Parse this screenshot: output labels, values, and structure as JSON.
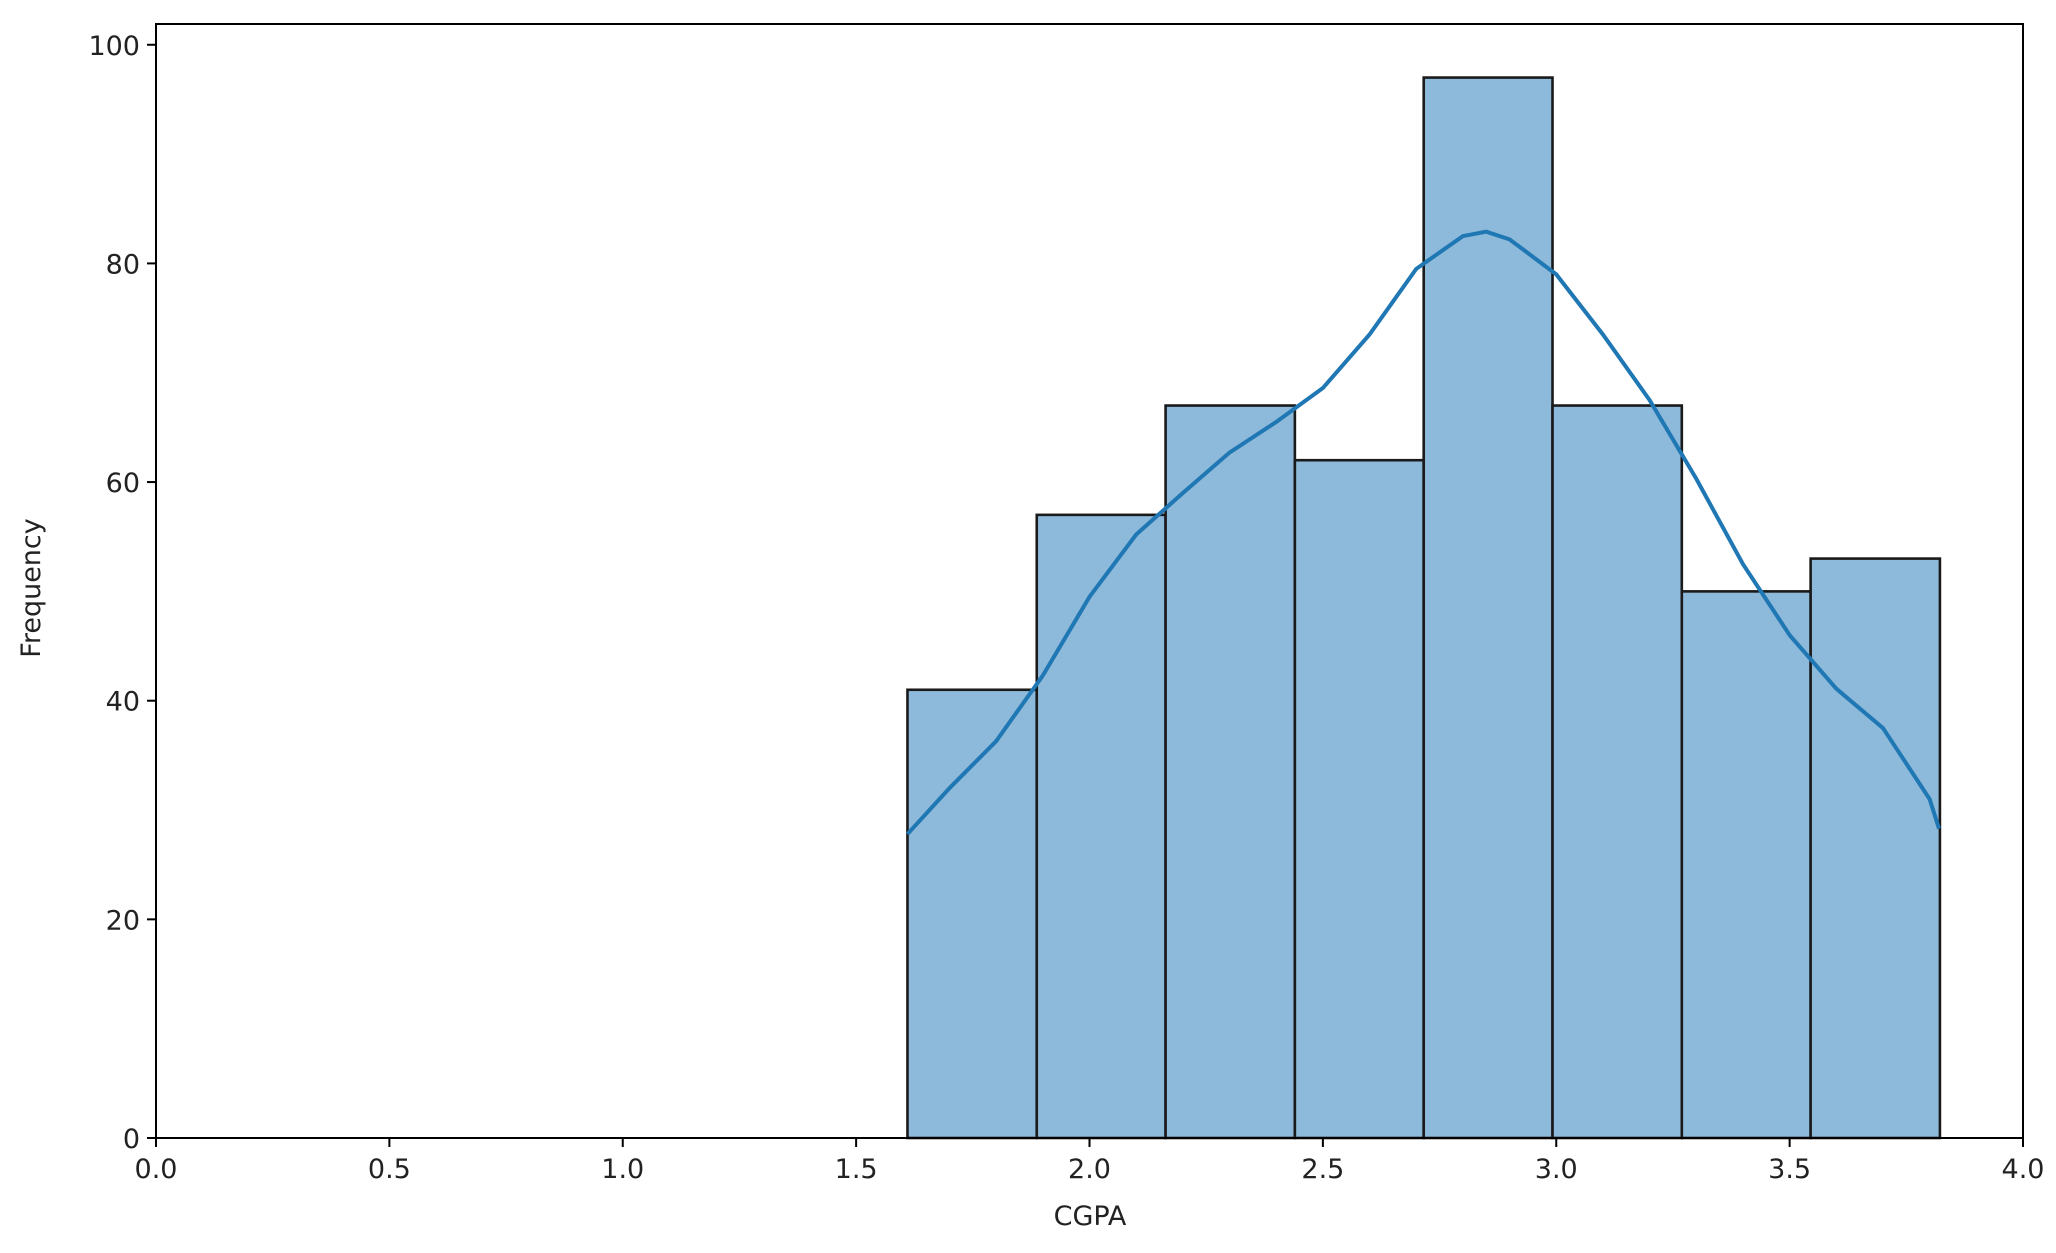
{
  "chart_data": {
    "type": "histogram",
    "xlabel": "CGPA",
    "ylabel": "Frequency",
    "bins": [
      1.61,
      1.887,
      2.163,
      2.44,
      2.716,
      2.992,
      3.269,
      3.545,
      3.822
    ],
    "values": [
      41,
      57,
      67,
      62,
      97,
      67,
      50,
      53
    ],
    "color": "#8db9da",
    "edgecolor": "#1a1a1a",
    "kde": {
      "color": "#1f77b4",
      "x": [
        1.61,
        1.7,
        1.8,
        1.9,
        2.0,
        2.1,
        2.2,
        2.3,
        2.4,
        2.5,
        2.6,
        2.7,
        2.8,
        2.85,
        2.9,
        3.0,
        3.1,
        3.2,
        3.3,
        3.4,
        3.5,
        3.6,
        3.7,
        3.8,
        3.82
      ],
      "values": [
        27.8,
        32,
        36.3,
        42.3,
        49.5,
        55.2,
        59,
        62.7,
        65.5,
        68.6,
        73.5,
        79.5,
        82.5,
        82.9,
        82.2,
        79,
        73.5,
        67.5,
        60.3,
        52.5,
        46,
        41.1,
        37.5,
        31,
        28.3
      ]
    },
    "xlim": [
      0,
      4
    ],
    "xticks": [
      {
        "value": 0,
        "label": "0.0"
      },
      0.5,
      {
        "value": 1,
        "label": "1.0"
      },
      1.5,
      {
        "value": 2,
        "label": "2.0"
      },
      2.5,
      {
        "value": 3,
        "label": "3.0"
      },
      3.5,
      {
        "value": 4,
        "label": "4.0"
      }
    ],
    "ylim": [
      0,
      101.9
    ],
    "yticks": [
      0,
      20,
      40,
      60,
      80,
      100
    ]
  }
}
